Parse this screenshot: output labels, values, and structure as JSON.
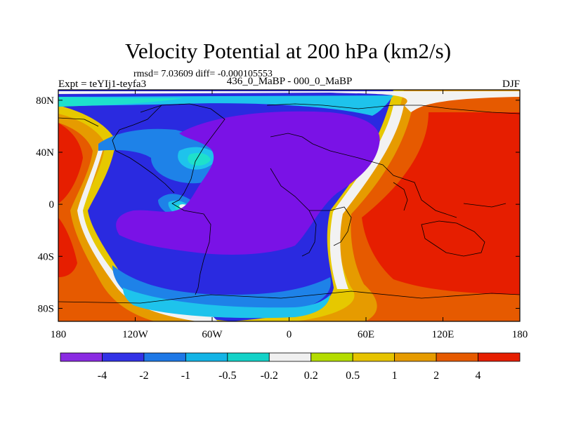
{
  "title": "Velocity Potential at 200 hPa (km2/s)",
  "stats": "rmsd= 7.03609 diff= -0.000105553",
  "experiment": "Expt = teYIj1-teyfa3",
  "comparison": "436_0_MaBP - 000_0_MaBP",
  "season": "DJF",
  "y_ticks": [
    {
      "label": "80N",
      "lat": 80
    },
    {
      "label": "40N",
      "lat": 40
    },
    {
      "label": "0",
      "lat": 0
    },
    {
      "label": "40S",
      "lat": -40
    },
    {
      "label": "80S",
      "lat": -80
    }
  ],
  "x_ticks": [
    {
      "label": "180",
      "lon": -180
    },
    {
      "label": "120W",
      "lon": -120
    },
    {
      "label": "60W",
      "lon": -60
    },
    {
      "label": "0",
      "lon": 0
    },
    {
      "label": "60E",
      "lon": 60
    },
    {
      "label": "120E",
      "lon": 120
    },
    {
      "label": "180",
      "lon": 180
    }
  ],
  "colorbar": {
    "colors": [
      "#8a2be2",
      "#3232e6",
      "#1e78e6",
      "#14b4e6",
      "#14d2c8",
      "#f0f0f0",
      "#b4dc00",
      "#e6c300",
      "#e69b00",
      "#e65a00",
      "#e61e00"
    ],
    "labels": [
      "-4",
      "-2",
      "-1",
      "-0.5",
      "-0.2",
      "0.2",
      "0.5",
      "1",
      "2",
      "4"
    ]
  },
  "colors": {
    "very_low": "#7a12e6",
    "low": "#2a2ae0",
    "mid_low": "#1e82e8",
    "light_blue": "#1ec3ec",
    "cyan": "#1ee0cc",
    "near_zero": "#f2f2f2",
    "yellow_green": "#b4dc00",
    "yellow": "#e6c800",
    "orange": "#e69b00",
    "dark_orange": "#e65a00",
    "red": "#e61e00"
  }
}
